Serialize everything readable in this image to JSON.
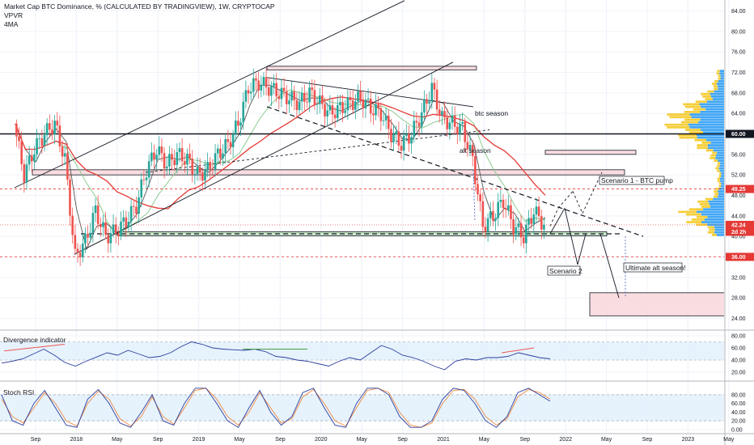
{
  "header": {
    "title": "Market Cap BTC Dominance, % (CALCULATED BY TRADINGVIEW), 1W, CRYPTOCAP",
    "studies": [
      "VPVR",
      "4MA"
    ]
  },
  "colors": {
    "bull": "#26a69a",
    "bear": "#ef5350",
    "ma_red": "#e53935",
    "ma_green": "#81c784",
    "ma_dark": "#555555",
    "indicator_blue": "#2c3e9e",
    "stoch_orange": "#f0883e",
    "vp_blue": "#2196f3",
    "vp_yellow": "#f5c518",
    "zone_pink": "#f8d7da",
    "tag_red": "#e53935",
    "tag_black": "#131722"
  },
  "annotations": {
    "btc_season": "btc season",
    "alt_season": "alt season",
    "scenario1": "Scenario 1 - BTC pump",
    "scenario2": "Scenario 2",
    "ultimate": "Ultimate alt season!"
  },
  "panes": {
    "divergence": "Divergence indicator",
    "stoch": "Stoch RSI"
  },
  "price_tags": [
    {
      "value": "60.00",
      "color": "#131722"
    },
    {
      "value": "49.25",
      "color": "#e53935"
    },
    {
      "value": "42.24",
      "color": "#e53935"
    },
    {
      "value": "2d 2h",
      "color": "#e53935"
    },
    {
      "value": "36.00",
      "color": "#e53935"
    }
  ],
  "chart_data": [
    {
      "type": "candlestick",
      "title": "Market Cap BTC Dominance, % (CALCULATED BY TRADINGVIEW), 1W, CRYPTOCAP",
      "x_tick_labels": [
        "Sep",
        "2018",
        "May",
        "Sep",
        "2019",
        "May",
        "Sep",
        "2020",
        "May",
        "Sep",
        "2021",
        "May",
        "Sep",
        "2022",
        "May",
        "Sep",
        "2023",
        "May"
      ],
      "y_tick_labels": [
        "84.00",
        "80.00",
        "76.00",
        "72.00",
        "68.00",
        "64.00",
        "60.00",
        "56.00",
        "52.00",
        "48.00",
        "44.00",
        "40.00",
        "36.00",
        "32.00",
        "28.00",
        "24.00"
      ],
      "ylim": [
        22.5,
        85.5
      ],
      "close_series_approx": [
        {
          "date": "2017-07",
          "value": 62
        },
        {
          "date": "2017-08",
          "value": 52
        },
        {
          "date": "2017-09",
          "value": 57
        },
        {
          "date": "2017-10",
          "value": 60
        },
        {
          "date": "2017-11",
          "value": 62
        },
        {
          "date": "2017-12",
          "value": 55
        },
        {
          "date": "2018-01",
          "value": 36
        },
        {
          "date": "2018-02",
          "value": 39
        },
        {
          "date": "2018-03",
          "value": 45
        },
        {
          "date": "2018-04",
          "value": 40
        },
        {
          "date": "2018-05",
          "value": 41
        },
        {
          "date": "2018-06",
          "value": 43
        },
        {
          "date": "2018-07",
          "value": 46
        },
        {
          "date": "2018-08",
          "value": 53
        },
        {
          "date": "2018-09",
          "value": 57
        },
        {
          "date": "2018-10",
          "value": 54
        },
        {
          "date": "2018-11",
          "value": 56
        },
        {
          "date": "2018-12",
          "value": 55
        },
        {
          "date": "2019-01",
          "value": 52
        },
        {
          "date": "2019-02",
          "value": 53
        },
        {
          "date": "2019-03",
          "value": 56
        },
        {
          "date": "2019-04",
          "value": 58
        },
        {
          "date": "2019-05",
          "value": 62
        },
        {
          "date": "2019-06",
          "value": 69
        },
        {
          "date": "2019-07",
          "value": 70
        },
        {
          "date": "2019-08",
          "value": 69
        },
        {
          "date": "2019-09",
          "value": 68
        },
        {
          "date": "2019-10",
          "value": 67
        },
        {
          "date": "2019-11",
          "value": 66
        },
        {
          "date": "2019-12",
          "value": 68
        },
        {
          "date": "2020-01",
          "value": 66
        },
        {
          "date": "2020-02",
          "value": 64
        },
        {
          "date": "2020-03",
          "value": 65
        },
        {
          "date": "2020-04",
          "value": 66
        },
        {
          "date": "2020-05",
          "value": 67
        },
        {
          "date": "2020-06",
          "value": 65
        },
        {
          "date": "2020-07",
          "value": 64
        },
        {
          "date": "2020-08",
          "value": 60
        },
        {
          "date": "2020-09",
          "value": 58
        },
        {
          "date": "2020-10",
          "value": 60
        },
        {
          "date": "2020-11",
          "value": 64
        },
        {
          "date": "2020-12",
          "value": 69
        },
        {
          "date": "2021-01",
          "value": 63
        },
        {
          "date": "2021-02",
          "value": 62
        },
        {
          "date": "2021-03",
          "value": 61
        },
        {
          "date": "2021-04",
          "value": 55
        },
        {
          "date": "2021-05",
          "value": 42
        },
        {
          "date": "2021-06",
          "value": 44
        },
        {
          "date": "2021-07",
          "value": 47
        },
        {
          "date": "2021-08",
          "value": 42
        },
        {
          "date": "2021-09",
          "value": 40
        },
        {
          "date": "2021-10",
          "value": 45
        },
        {
          "date": "2021-11",
          "value": 42.24
        }
      ],
      "horizontal_levels": [
        60.0,
        49.25,
        36.0
      ],
      "zones": [
        {
          "from": 72.5,
          "to": 73.2
        },
        {
          "from": 56.0,
          "to": 56.8
        },
        {
          "from": 52.0,
          "to": 53.0
        },
        {
          "from": 24.5,
          "to": 29.0
        }
      ],
      "current_value": 42.24
    },
    {
      "type": "line",
      "title": "Divergence indicator",
      "y_tick_labels": [
        "80.00",
        "60.00",
        "40.00",
        "20.00"
      ],
      "ylim": [
        12,
        84
      ],
      "band": [
        40,
        70
      ],
      "values_approx": [
        35,
        38,
        42,
        50,
        58,
        48,
        36,
        30,
        38,
        45,
        52,
        48,
        56,
        50,
        44,
        46,
        52,
        62,
        70,
        66,
        60,
        58,
        57,
        56,
        58,
        54,
        46,
        44,
        40,
        38,
        34,
        30,
        38,
        44,
        40,
        52,
        64,
        58,
        48,
        44,
        38,
        30,
        24,
        38,
        42,
        40,
        44,
        44,
        46,
        52,
        48,
        44,
        42
      ]
    },
    {
      "type": "line",
      "title": "Stoch RSI",
      "y_tick_labels": [
        "80.00",
        "60.00",
        "40.00",
        "20.00",
        "0.00"
      ],
      "ylim": [
        -4,
        104
      ],
      "band": [
        20,
        80
      ],
      "k_values_approx": [
        80,
        20,
        10,
        60,
        90,
        50,
        10,
        5,
        70,
        92,
        60,
        15,
        5,
        40,
        80,
        20,
        10,
        60,
        95,
        95,
        60,
        20,
        5,
        50,
        90,
        40,
        10,
        30,
        85,
        95,
        50,
        10,
        5,
        60,
        95,
        95,
        80,
        30,
        5,
        5,
        20,
        70,
        95,
        90,
        60,
        20,
        5,
        30,
        85,
        95,
        80,
        65
      ],
      "d_values_approx": [
        70,
        30,
        15,
        50,
        85,
        60,
        20,
        8,
        60,
        88,
        70,
        25,
        8,
        30,
        75,
        30,
        12,
        50,
        90,
        95,
        70,
        30,
        10,
        40,
        85,
        50,
        15,
        25,
        75,
        92,
        60,
        20,
        8,
        50,
        90,
        95,
        85,
        40,
        10,
        5,
        15,
        60,
        90,
        92,
        70,
        30,
        10,
        25,
        75,
        92,
        85,
        70
      ]
    }
  ]
}
